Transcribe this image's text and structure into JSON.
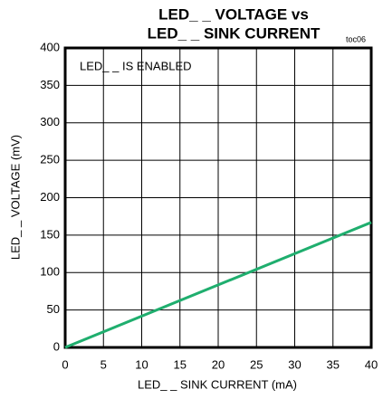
{
  "chart_data": {
    "type": "line",
    "title": [
      "LED_ _ VOLTAGE vs",
      "LED_ _ SINK CURRENT"
    ],
    "annotations": [
      "toc06",
      "LED_ _ IS ENABLED"
    ],
    "xlabel": "LED_ _ SINK CURRENT (mA)",
    "ylabel": "LED_ _ VOLTAGE (mV)",
    "x": [
      0,
      40
    ],
    "values": [
      0,
      167
    ],
    "color": "#1fae6e",
    "xlim": [
      0,
      40
    ],
    "xticks": [
      0,
      5,
      10,
      15,
      20,
      25,
      30,
      35,
      40
    ],
    "ylim": [
      0,
      400
    ],
    "yticks": [
      0,
      50,
      100,
      150,
      200,
      250,
      300,
      350,
      400
    ],
    "grid": true
  }
}
